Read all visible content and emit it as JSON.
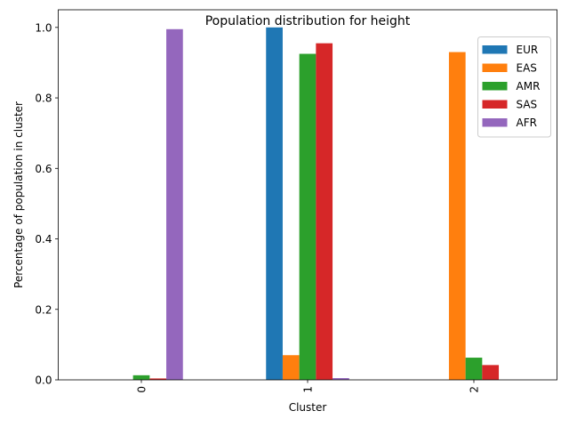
{
  "chart_data": {
    "type": "bar",
    "title": "Population distribution for height",
    "xlabel": "Cluster",
    "ylabel": "Percentage of population in cluster",
    "categories": [
      "0",
      "1",
      "2"
    ],
    "ylim": [
      0,
      1.05
    ],
    "yticks": [
      "0.0",
      "0.2",
      "0.4",
      "0.6",
      "0.8",
      "1.0"
    ],
    "grid": false,
    "legend_position": "top-right",
    "series": [
      {
        "name": "EUR",
        "color": "#1f77b4",
        "values": [
          0.0,
          1.0,
          0.0
        ]
      },
      {
        "name": "EAS",
        "color": "#ff7f0e",
        "values": [
          0.0,
          0.07,
          0.93
        ]
      },
      {
        "name": "AMR",
        "color": "#2ca02c",
        "values": [
          0.013,
          0.925,
          0.063
        ]
      },
      {
        "name": "SAS",
        "color": "#d62728",
        "values": [
          0.004,
          0.955,
          0.042
        ]
      },
      {
        "name": "AFR",
        "color": "#9467bd",
        "values": [
          0.995,
          0.005,
          0.0
        ]
      }
    ]
  }
}
